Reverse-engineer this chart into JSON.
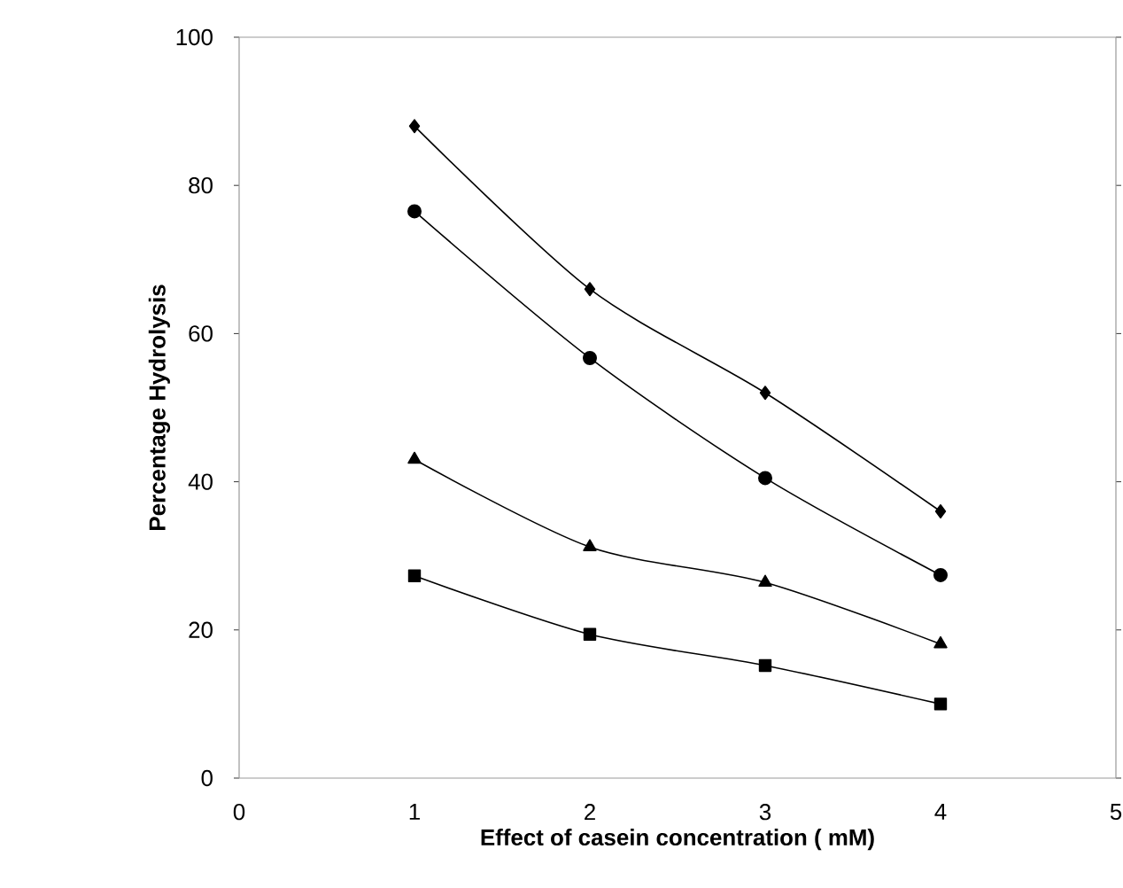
{
  "chart_data": {
    "type": "line",
    "xlabel": "Effect of casein concentration ( mM)",
    "ylabel": "Percentage Hydrolysis",
    "x": [
      1,
      2,
      3,
      4
    ],
    "series": [
      {
        "color": "#000000",
        "marker": "diamond",
        "values": [
          88,
          66,
          52,
          36
        ]
      },
      {
        "color": "#000000",
        "marker": "circle",
        "values": [
          76.5,
          56.7,
          40.5,
          27.4
        ]
      },
      {
        "color": "#000000",
        "marker": "triangle",
        "values": [
          43,
          31.2,
          26.4,
          18.1
        ]
      },
      {
        "color": "#000000",
        "marker": "square",
        "values": [
          27.3,
          19.4,
          15.2,
          10
        ]
      }
    ],
    "xlim": [
      0,
      5
    ],
    "ylim": [
      0,
      100
    ],
    "xticks": [
      0,
      1,
      2,
      3,
      4,
      5
    ],
    "yticks": [
      0,
      20,
      40,
      60,
      80,
      100
    ],
    "grid": false,
    "line_style": "solid"
  }
}
